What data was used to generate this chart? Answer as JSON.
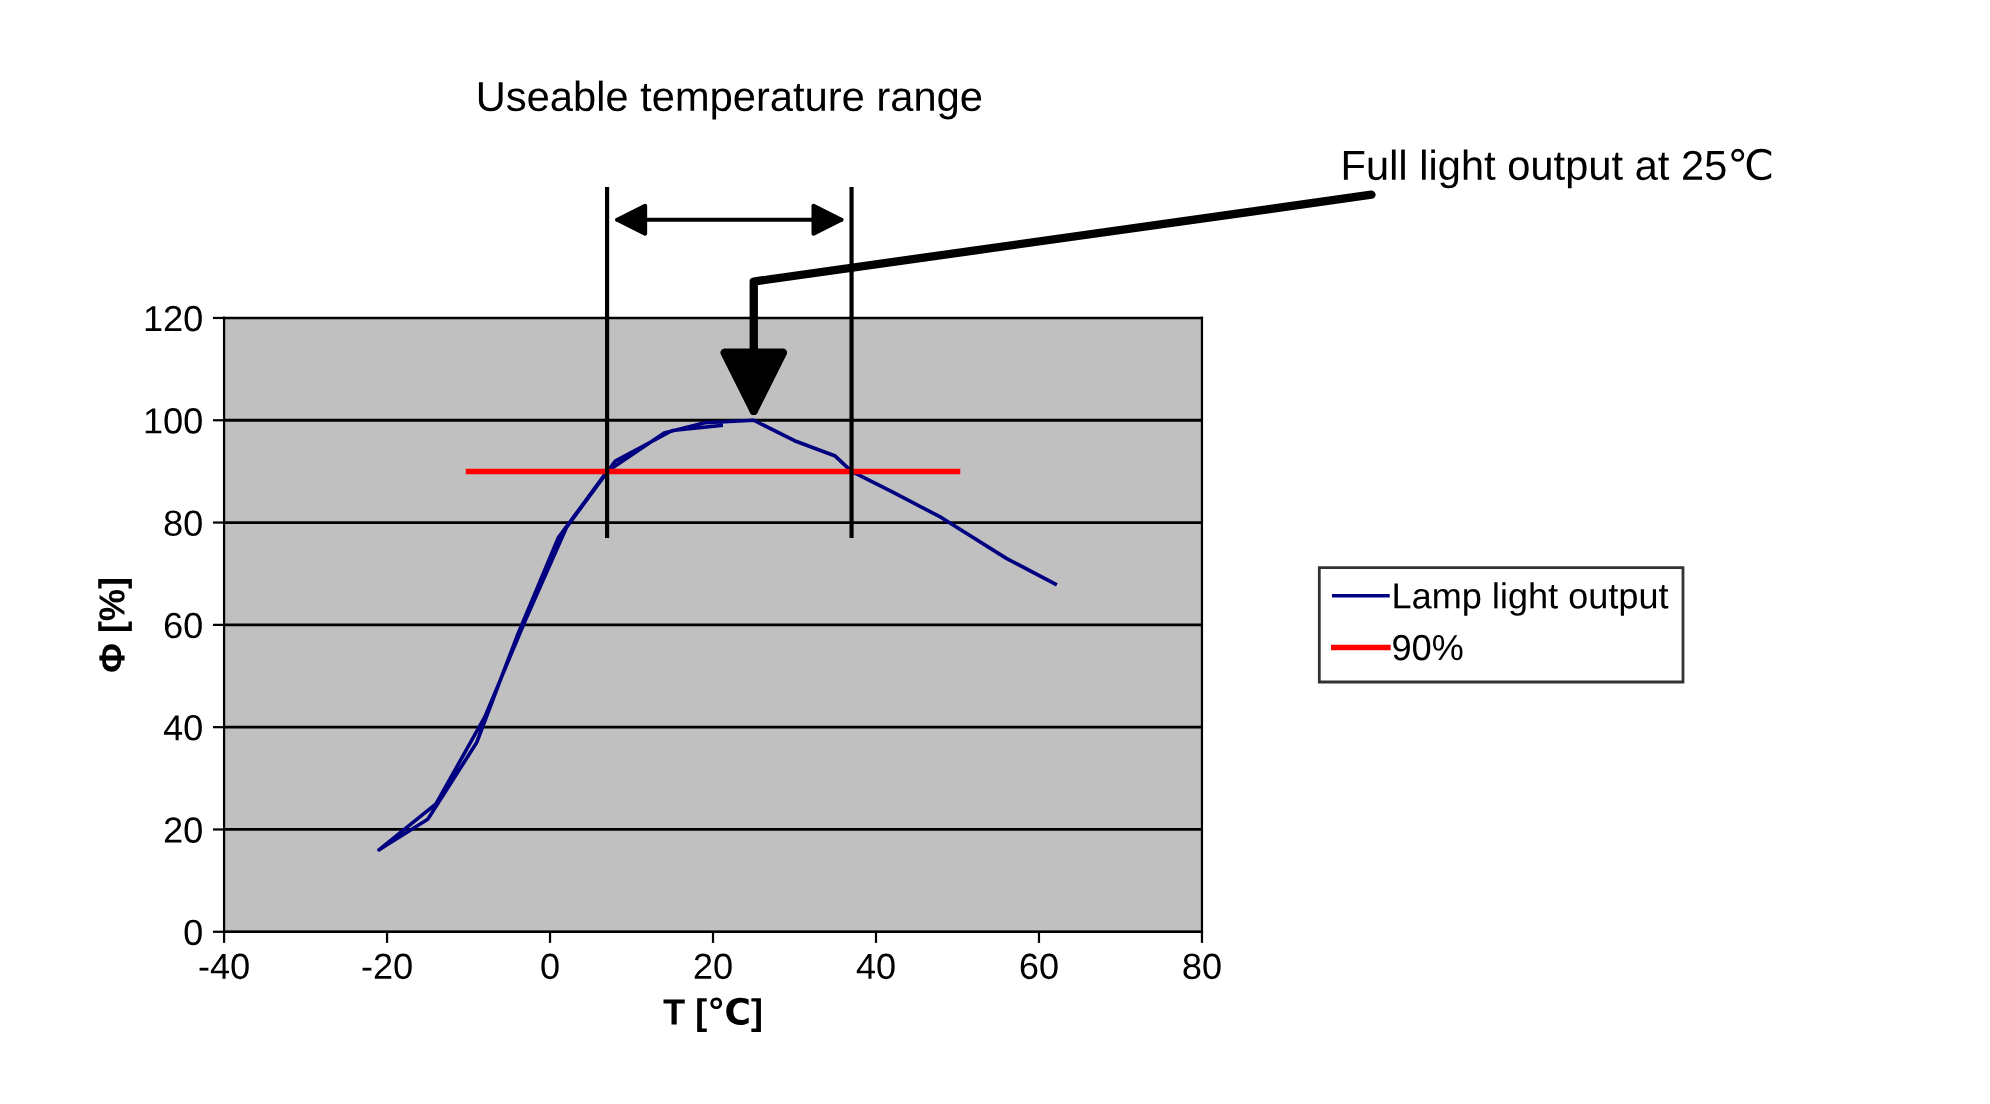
{
  "chart_data": {
    "type": "line",
    "xlabel": "T [℃]",
    "ylabel": "Φ [%]",
    "series": [
      {
        "name": "Lamp light output",
        "color": "#000080",
        "x": [
          21,
          15,
          8,
          2,
          -3,
          -8,
          -14,
          -21,
          -20,
          -15,
          -9,
          -4,
          1,
          7,
          14,
          19,
          25,
          30,
          35,
          37,
          42,
          48,
          56,
          62
        ],
        "values": [
          99,
          98,
          92,
          79,
          61,
          42,
          25,
          16,
          17,
          22,
          37,
          58,
          77,
          90,
          97.5,
          99.5,
          100,
          96,
          93,
          90,
          86,
          81,
          73,
          68
        ]
      },
      {
        "name": "90%",
        "color": "#ff0000",
        "x": [
          -10,
          50
        ],
        "values": [
          90,
          90
        ]
      }
    ],
    "xlim": [
      -40,
      80
    ],
    "xticks": [
      -40,
      -20,
      0,
      20,
      40,
      60,
      80
    ],
    "ylim": [
      0,
      120
    ],
    "yticks": [
      0,
      20,
      40,
      60,
      80,
      100,
      120
    ],
    "grid": "y",
    "legend": "right",
    "marker": "none",
    "line_style": "solid",
    "ref_lines": [
      {
        "axis": "x",
        "value": 7,
        "label": null
      },
      {
        "axis": "x",
        "value": 37,
        "label": null
      }
    ],
    "annotations": [
      "Useable temperature range",
      {
        "text": "Full light output at 25℃",
        "x": 25,
        "y": 100
      }
    ]
  }
}
